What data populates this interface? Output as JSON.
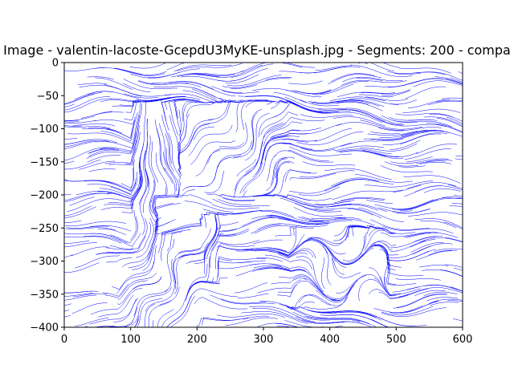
{
  "chart_data": {
    "type": "line",
    "title": "Image - valentin-lacoste-GcepdU3MyKE-unsplash.jpg - Segments: 200 - compa",
    "xlabel": "",
    "ylabel": "",
    "xlim": [
      0,
      600
    ],
    "ylim": [
      -400,
      0
    ],
    "x_ticks": [
      0,
      100,
      200,
      300,
      400,
      500,
      600
    ],
    "y_ticks": [
      0,
      -50,
      -100,
      -150,
      -200,
      -250,
      -300,
      -350,
      -400
    ],
    "grid": false,
    "legend": "none",
    "line_color": "#0000ff",
    "regions": [
      {
        "name": "background-horizontal",
        "x": [
          80,
          600
        ],
        "y": [
          -400,
          0
        ],
        "flow": "horizontal"
      },
      {
        "name": "upper-box",
        "x": [
          110,
          340
        ],
        "y": [
          -210,
          -60
        ],
        "flow": "diagonal"
      },
      {
        "name": "left-tower",
        "x": [
          100,
          175
        ],
        "y": [
          -290,
          -60
        ],
        "flow": "vertical"
      },
      {
        "name": "horizontal-band",
        "x": [
          140,
          490
        ],
        "y": [
          -260,
          -200
        ],
        "flow": "horizontal"
      },
      {
        "name": "center-column",
        "x": [
          205,
          235
        ],
        "y": [
          -330,
          -230
        ],
        "flow": "vertical"
      },
      {
        "name": "right-block",
        "x": [
          340,
          490
        ],
        "y": [
          -370,
          -250
        ],
        "flow": "mixed"
      },
      {
        "name": "lower-left",
        "x": [
          80,
          210
        ],
        "y": [
          -400,
          -280
        ],
        "flow": "diagonal"
      }
    ]
  }
}
